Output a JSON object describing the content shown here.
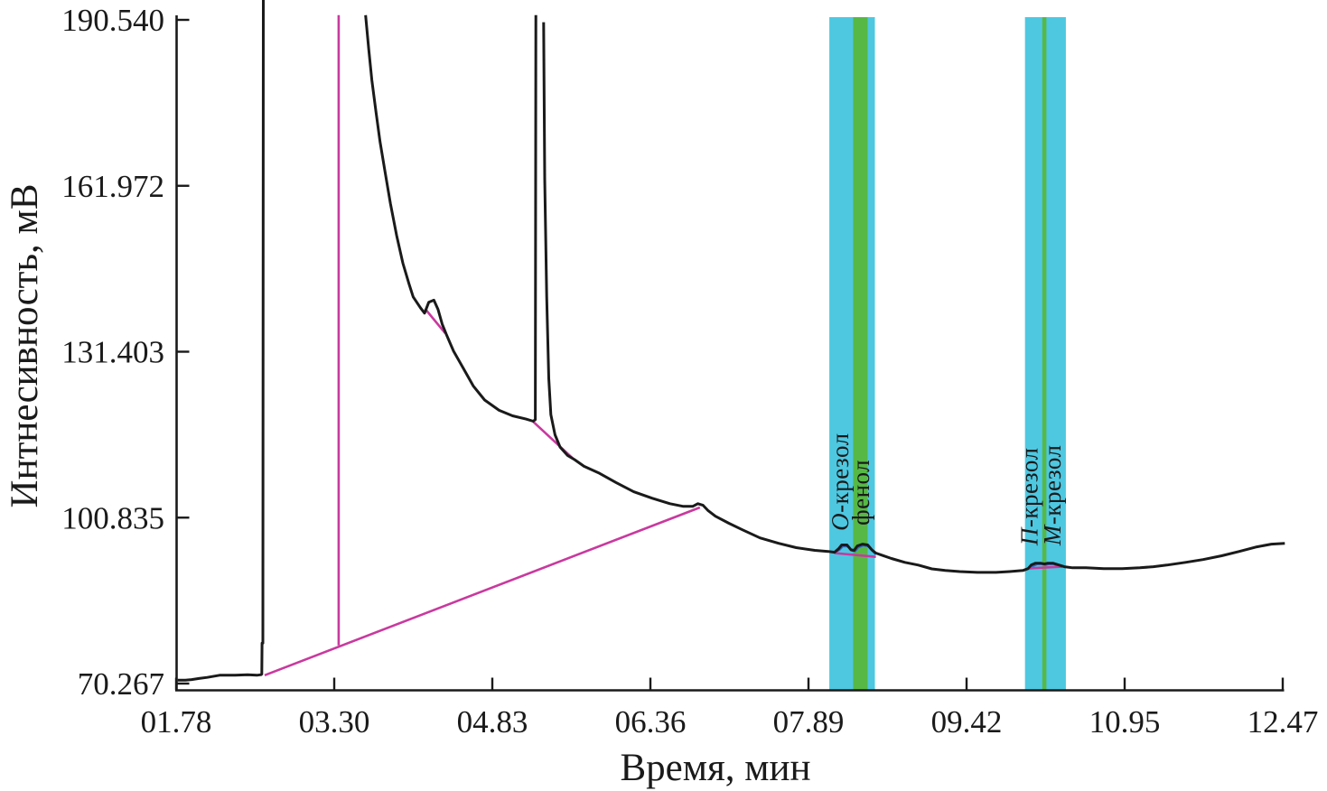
{
  "chart_data": {
    "type": "line",
    "title": "",
    "xlabel": "Время, мин",
    "ylabel": "Интнесивность, мВ",
    "xlim": [
      1.78,
      12.47
    ],
    "ylim": [
      70.267,
      190.54
    ],
    "grid": false,
    "legend": null,
    "x_axis": {
      "tick_labels": [
        "01.78",
        "03.30",
        "04.83",
        "06.36",
        "07.89",
        "09.42",
        "10.95",
        "12.47"
      ],
      "tick_values": [
        1.78,
        3.3,
        4.83,
        6.36,
        7.89,
        9.42,
        10.95,
        12.47
      ]
    },
    "y_axis": {
      "tick_labels": [
        "190.540",
        "161.972",
        "131.403",
        "100.835",
        "70.267"
      ],
      "tick_values": [
        190.54,
        161.972,
        131.403,
        100.835,
        70.267
      ]
    },
    "colors": {
      "trace": "#1a1a1a",
      "baseline": "#c9399e",
      "window": "#4ec8e1",
      "window_marker": "#57b845",
      "fitted_peak": "#2f6bd0",
      "axis": "#1a1a1a"
    },
    "bands": [
      {
        "name": "retention-window-phenol-ocresol",
        "t0": 8.09,
        "t1": 8.53,
        "marker_t0": 8.32,
        "marker_t1": 8.46
      },
      {
        "name": "retention-window-pcresol-mcresol",
        "t0": 9.98,
        "t1": 10.375,
        "marker_t0": 10.147,
        "marker_t1": 10.187
      }
    ],
    "peak_labels": [
      {
        "prefix": "О",
        "text": "-крезол",
        "t": 8.19,
        "mv": 98.4
      },
      {
        "prefix": "",
        "text": "фенол",
        "t": 8.39,
        "mv": 99.4
      },
      {
        "prefix": "П",
        "text": "-крезол",
        "t": 10.02,
        "mv": 95.7
      },
      {
        "prefix": "М",
        "text": "-крезол",
        "t": 10.24,
        "mv": 95.7
      }
    ],
    "series": [
      {
        "name": "fitted-peak-window1",
        "color": "#2f6bd0",
        "width": 2,
        "segments": [
          [
            [
              8.14,
              94.35
            ],
            [
              8.19,
              94.9
            ],
            [
              8.22,
              95.5
            ],
            [
              8.27,
              95.5
            ],
            [
              8.31,
              94.7
            ],
            [
              8.34,
              94.6
            ],
            [
              8.37,
              95.3
            ],
            [
              8.42,
              95.7
            ],
            [
              8.47,
              95.5
            ],
            [
              8.51,
              94.6
            ],
            [
              8.54,
              94.0
            ]
          ]
        ]
      },
      {
        "name": "fitted-peak-window2",
        "color": "#2f6bd0",
        "width": 2,
        "segments": [
          [
            [
              10.02,
              91.5
            ],
            [
              10.06,
              91.9
            ],
            [
              10.1,
              92.25
            ],
            [
              10.15,
              92.25
            ],
            [
              10.18,
              92.1
            ],
            [
              10.21,
              92.25
            ],
            [
              10.26,
              92.25
            ],
            [
              10.31,
              91.9
            ],
            [
              10.34,
              91.75
            ]
          ]
        ]
      },
      {
        "name": "baseline-marker-vertical",
        "color": "#c9399e",
        "width": 2.6,
        "segments": [
          [
            [
              3.35,
              193.4
            ],
            [
              3.35,
              77.3
            ]
          ]
        ]
      },
      {
        "name": "baseline-solvent-diagonal",
        "color": "#c9399e",
        "width": 2.6,
        "segments": [
          [
            [
              2.635,
              71.8
            ],
            [
              6.84,
              102.7
            ]
          ]
        ]
      },
      {
        "name": "baseline-shoulder-peak",
        "color": "#c9399e",
        "width": 2.6,
        "segments": [
          [
            [
              4.185,
              139.3
            ],
            [
              4.38,
              134.8
            ]
          ]
        ]
      },
      {
        "name": "baseline-narrow-peak",
        "color": "#c9399e",
        "width": 2.6,
        "segments": [
          [
            [
              5.23,
              118.5
            ],
            [
              5.62,
              111.6
            ]
          ]
        ]
      },
      {
        "name": "baseline-window1",
        "color": "#c9399e",
        "width": 2.6,
        "segments": [
          [
            [
              8.14,
              94.3
            ],
            [
              8.54,
              93.6
            ]
          ]
        ]
      },
      {
        "name": "baseline-window2",
        "color": "#c9399e",
        "width": 2.6,
        "segments": [
          [
            [
              10.02,
              91.5
            ],
            [
              10.34,
              91.8
            ]
          ]
        ]
      },
      {
        "name": "chromatogram-trace",
        "color": "#1a1a1a",
        "width": 3,
        "segments": [
          [
            [
              1.795,
              70.9
            ],
            [
              1.87,
              70.9
            ],
            [
              1.93,
              71.0
            ],
            [
              2.0,
              71.2
            ],
            [
              2.08,
              71.4
            ],
            [
              2.2,
              71.8
            ],
            [
              2.35,
              71.8
            ],
            [
              2.47,
              71.9
            ],
            [
              2.56,
              71.8
            ],
            [
              2.6,
              71.9
            ],
            [
              2.607,
              72.0
            ],
            [
              2.61,
              77.7
            ],
            [
              2.618,
              77.7
            ],
            [
              2.622,
              196.2
            ]
          ],
          [
            [
              3.61,
              193.4
            ],
            [
              3.64,
              187.3
            ],
            [
              3.67,
              181.5
            ],
            [
              3.71,
              175.6
            ],
            [
              3.75,
              170.1
            ],
            [
              3.8,
              164.3
            ],
            [
              3.85,
              158.7
            ],
            [
              3.91,
              152.8
            ],
            [
              3.97,
              147.7
            ],
            [
              4.03,
              143.9
            ],
            [
              4.07,
              141.5
            ],
            [
              4.14,
              139.5
            ],
            [
              4.18,
              138.5
            ],
            [
              4.22,
              140.5
            ],
            [
              4.27,
              140.9
            ],
            [
              4.31,
              139.2
            ],
            [
              4.35,
              136.5
            ],
            [
              4.39,
              134.6
            ],
            [
              4.46,
              131.5
            ],
            [
              4.55,
              128.5
            ],
            [
              4.65,
              125.1
            ],
            [
              4.76,
              122.5
            ],
            [
              4.9,
              120.6
            ],
            [
              5.03,
              119.6
            ],
            [
              5.16,
              119.0
            ],
            [
              5.23,
              118.6
            ],
            [
              5.25,
              118.9
            ],
            [
              5.255,
              193.4
            ]
          ],
          [
            [
              5.33,
              192.1
            ],
            [
              5.34,
              163.2
            ],
            [
              5.36,
              141.5
            ],
            [
              5.38,
              126.5
            ],
            [
              5.4,
              119.8
            ],
            [
              5.44,
              116.1
            ],
            [
              5.49,
              113.8
            ],
            [
              5.56,
              112.3
            ],
            [
              5.63,
              111.5
            ],
            [
              5.72,
              110.3
            ],
            [
              5.86,
              109.1
            ],
            [
              6.03,
              107.3
            ],
            [
              6.2,
              105.6
            ],
            [
              6.38,
              104.4
            ],
            [
              6.55,
              103.4
            ],
            [
              6.68,
              102.9
            ],
            [
              6.77,
              102.9
            ],
            [
              6.82,
              103.4
            ],
            [
              6.87,
              103.1
            ],
            [
              6.92,
              102.1
            ],
            [
              6.99,
              101.1
            ],
            [
              7.12,
              99.8
            ],
            [
              7.25,
              98.6
            ],
            [
              7.42,
              97.1
            ],
            [
              7.6,
              96.1
            ],
            [
              7.77,
              95.3
            ],
            [
              7.95,
              94.8
            ],
            [
              8.08,
              94.6
            ],
            [
              8.14,
              94.45
            ],
            [
              8.18,
              95.1
            ],
            [
              8.21,
              95.8
            ],
            [
              8.26,
              95.8
            ],
            [
              8.3,
              94.9
            ],
            [
              8.33,
              94.8
            ],
            [
              8.36,
              95.6
            ],
            [
              8.41,
              95.95
            ],
            [
              8.46,
              95.8
            ],
            [
              8.5,
              94.9
            ],
            [
              8.54,
              94.3
            ],
            [
              8.6,
              93.9
            ],
            [
              8.69,
              93.3
            ],
            [
              8.82,
              92.6
            ],
            [
              8.95,
              92.1
            ],
            [
              9.08,
              91.4
            ],
            [
              9.21,
              91.1
            ],
            [
              9.35,
              90.9
            ],
            [
              9.52,
              90.75
            ],
            [
              9.7,
              90.75
            ],
            [
              9.83,
              90.9
            ],
            [
              9.96,
              91.1
            ],
            [
              10.01,
              91.45
            ],
            [
              10.04,
              92.1
            ],
            [
              10.08,
              92.45
            ],
            [
              10.13,
              92.45
            ],
            [
              10.17,
              92.3
            ],
            [
              10.2,
              92.45
            ],
            [
              10.25,
              92.45
            ],
            [
              10.31,
              92.1
            ],
            [
              10.36,
              91.8
            ],
            [
              10.44,
              91.6
            ],
            [
              10.57,
              91.6
            ],
            [
              10.74,
              91.45
            ],
            [
              10.92,
              91.45
            ],
            [
              11.09,
              91.6
            ],
            [
              11.22,
              91.8
            ],
            [
              11.35,
              92.1
            ],
            [
              11.53,
              92.6
            ],
            [
              11.7,
              93.1
            ],
            [
              11.88,
              93.8
            ],
            [
              12.05,
              94.6
            ],
            [
              12.22,
              95.45
            ],
            [
              12.36,
              95.95
            ],
            [
              12.49,
              96.1
            ]
          ]
        ]
      }
    ]
  }
}
